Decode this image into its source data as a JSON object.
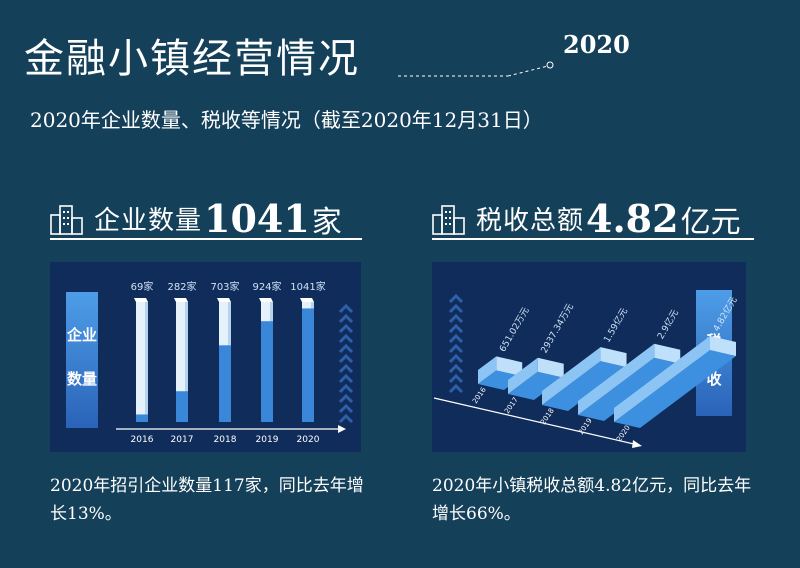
{
  "header": {
    "title": "金融小镇经营情况",
    "year": "2020",
    "subtitle": "2020年企业数量、税收等情况（截至2020年12月31日）"
  },
  "left": {
    "label": "企业数量",
    "value": "1041",
    "unit": "家",
    "side_label": "企业数量",
    "description": "2020年招引企业数量117家，同比去年增长13%。"
  },
  "right": {
    "label": "税收总额",
    "value": "4.82",
    "unit": "亿元",
    "side_label": "税收",
    "description": "2020年小镇税收总额4.82亿元，同比去年增长66%。"
  },
  "colors": {
    "background": "#15405a",
    "panel": "#0f2c5a",
    "bar": "#3a86d8",
    "bar_empty": "#e6f2fb",
    "accent": "#3b7ad6"
  },
  "chart_data": [
    {
      "type": "bar",
      "categories": [
        "2016",
        "2017",
        "2018",
        "2019",
        "2020"
      ],
      "values": [
        69,
        282,
        703,
        924,
        1041
      ],
      "value_labels": [
        "69家",
        "282家",
        "703家",
        "924家",
        "1041家"
      ],
      "ylim": [
        0,
        1100
      ]
    },
    {
      "type": "bar",
      "categories": [
        "2016",
        "2017",
        "2018",
        "2019",
        "2020"
      ],
      "values": [
        651.02,
        2937.34,
        15900,
        29000,
        48200
      ],
      "value_labels": [
        "651.02万元",
        "2937.34万元",
        "1.59亿元",
        "2.9亿元",
        "4.82亿元"
      ]
    }
  ]
}
